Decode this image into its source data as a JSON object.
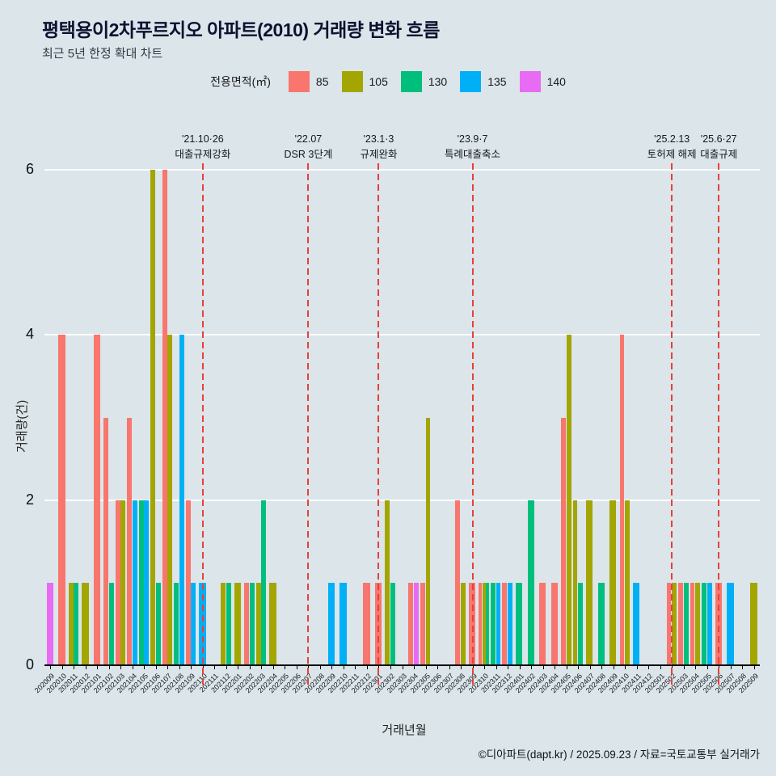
{
  "page": {
    "background": "#dbe5ea"
  },
  "chart_data": {
    "type": "bar",
    "title": "평택용이2차푸르지오 아파트(2010) 거래량 변화 흐름",
    "subtitle": "최근 5년 한정 확대 차트",
    "legend_title": "전용면적(㎡)",
    "xlabel": "거래년월",
    "ylabel": "거래량(건)",
    "caption": "©디아파트(dapt.kr) / 2025.09.23 / 자료=국토교통부 실거래가",
    "ylim": [
      0,
      6
    ],
    "yticks": [
      0,
      2,
      4,
      6
    ],
    "grid": "horizontal-white",
    "legend_position": "top",
    "event_line_color": "#e8403a",
    "categories": [
      "202009",
      "202010",
      "202011",
      "202012",
      "202101",
      "202102",
      "202103",
      "202104",
      "202105",
      "202106",
      "202107",
      "202108",
      "202109",
      "202110",
      "202111",
      "202112",
      "202201",
      "202202",
      "202203",
      "202204",
      "202205",
      "202206",
      "202207",
      "202208",
      "202209",
      "202210",
      "202211",
      "202212",
      "202301",
      "202302",
      "202303",
      "202304",
      "202305",
      "202306",
      "202307",
      "202308",
      "202309",
      "202310",
      "202311",
      "202312",
      "202401",
      "202402",
      "202403",
      "202404",
      "202405",
      "202406",
      "202407",
      "202408",
      "202409",
      "202410",
      "202411",
      "202412",
      "202501",
      "202502",
      "202503",
      "202504",
      "202505",
      "202506",
      "202507",
      "202508",
      "202509"
    ],
    "series": [
      {
        "name": "85",
        "color": "#F8766D",
        "values": [
          0,
          4,
          0,
          0,
          4,
          3,
          2,
          3,
          0,
          0,
          6,
          0,
          2,
          0,
          0,
          0,
          0,
          1,
          0,
          0,
          0,
          0,
          0,
          0,
          0,
          0,
          0,
          1,
          1,
          0,
          0,
          1,
          1,
          0,
          0,
          2,
          1,
          1,
          0,
          1,
          0,
          0,
          1,
          1,
          3,
          0,
          0,
          0,
          0,
          4,
          0,
          0,
          0,
          1,
          1,
          1,
          0,
          1,
          0,
          0,
          0
        ]
      },
      {
        "name": "105",
        "color": "#A3A500",
        "values": [
          0,
          0,
          1,
          1,
          0,
          0,
          2,
          0,
          0,
          6,
          4,
          0,
          0,
          0,
          0,
          1,
          1,
          0,
          1,
          1,
          0,
          0,
          0,
          0,
          0,
          0,
          0,
          0,
          0,
          2,
          0,
          0,
          3,
          0,
          0,
          1,
          0,
          1,
          0,
          0,
          0,
          0,
          0,
          0,
          4,
          2,
          2,
          0,
          2,
          2,
          0,
          0,
          0,
          1,
          0,
          1,
          0,
          0,
          0,
          0,
          1
        ]
      },
      {
        "name": "130",
        "color": "#00BF7D",
        "values": [
          0,
          0,
          1,
          0,
          0,
          1,
          0,
          0,
          2,
          1,
          0,
          1,
          0,
          0,
          0,
          1,
          0,
          1,
          2,
          0,
          0,
          0,
          0,
          0,
          0,
          0,
          0,
          0,
          0,
          1,
          0,
          0,
          0,
          0,
          0,
          0,
          0,
          1,
          1,
          0,
          1,
          2,
          0,
          0,
          0,
          1,
          0,
          1,
          0,
          0,
          0,
          0,
          0,
          0,
          1,
          0,
          1,
          0,
          0,
          0,
          0
        ]
      },
      {
        "name": "135",
        "color": "#00B0F6",
        "values": [
          0,
          0,
          0,
          0,
          0,
          0,
          0,
          2,
          2,
          0,
          0,
          4,
          1,
          1,
          0,
          0,
          0,
          0,
          0,
          0,
          0,
          0,
          0,
          0,
          1,
          1,
          0,
          0,
          0,
          0,
          0,
          0,
          0,
          0,
          0,
          0,
          0,
          0,
          1,
          1,
          0,
          0,
          0,
          0,
          0,
          0,
          0,
          0,
          0,
          0,
          1,
          0,
          0,
          0,
          0,
          0,
          1,
          0,
          1,
          0,
          0
        ]
      },
      {
        "name": "140",
        "color": "#E76BF3",
        "values": [
          1,
          0,
          0,
          0,
          0,
          0,
          0,
          0,
          0,
          0,
          0,
          0,
          0,
          0,
          0,
          0,
          0,
          0,
          0,
          0,
          0,
          0,
          0,
          0,
          0,
          0,
          0,
          0,
          0,
          0,
          0,
          1,
          0,
          0,
          0,
          0,
          0,
          0,
          0,
          0,
          0,
          0,
          0,
          0,
          0,
          0,
          0,
          0,
          0,
          0,
          0,
          0,
          0,
          0,
          0,
          0,
          0,
          0,
          0,
          0,
          0
        ]
      }
    ],
    "annotations": [
      {
        "month": "202110",
        "date": "'21.10·26",
        "event": "대출규제강화"
      },
      {
        "month": "202207",
        "date": "'22.07",
        "event": "DSR 3단계"
      },
      {
        "month": "202301",
        "date": "'23.1·3",
        "event": "규제완화"
      },
      {
        "month": "202309",
        "date": "'23.9·7",
        "event": "특례대출축소"
      },
      {
        "month": "202502",
        "date": "'25.2.13",
        "event": "토허제 해제"
      },
      {
        "month": "202506",
        "date": "'25.6·27",
        "event": "대출규제"
      }
    ]
  }
}
